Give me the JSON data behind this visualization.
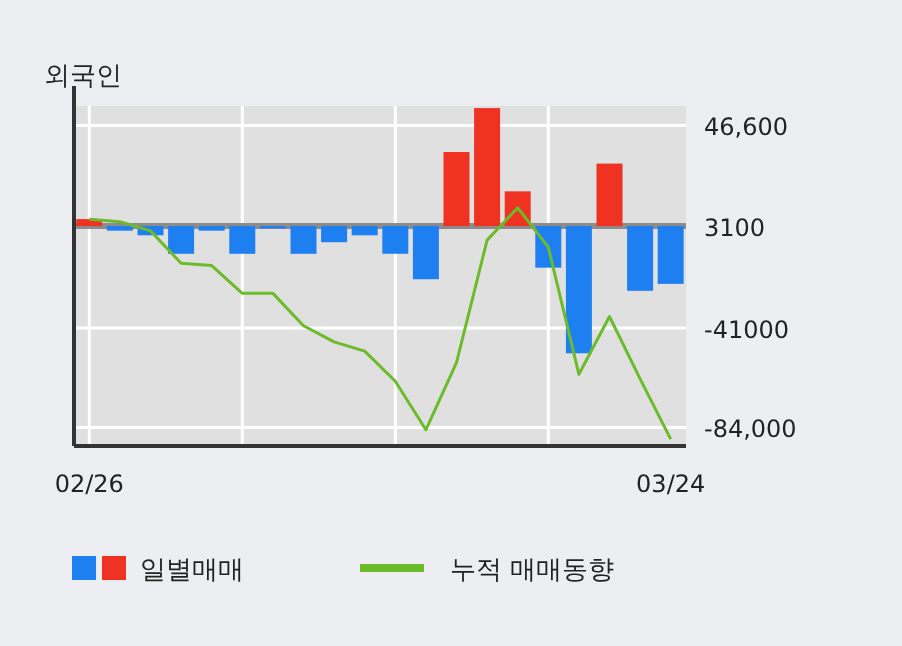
{
  "chart_data": {
    "type": "bar",
    "title": "외국인",
    "categories": [
      "02/26",
      null,
      null,
      null,
      null,
      null,
      null,
      null,
      null,
      null,
      null,
      null,
      null,
      null,
      null,
      null,
      null,
      null,
      null,
      "03/24"
    ],
    "ylim": [
      -92000,
      55000
    ],
    "yticks": [
      {
        "value": 46600,
        "label": "46,600"
      },
      3100,
      -41000,
      {
        "value": -84000,
        "label": "-84,000"
      }
    ],
    "grid": true,
    "legend": "bottom",
    "ref_lines": [
      {
        "axis": "y",
        "value": 3100,
        "color": "#8c8c8c"
      }
    ],
    "series": [
      {
        "name": "일별매매",
        "base": [
          3100,
          3100,
          3100,
          3100,
          3100,
          3100,
          3100,
          3100,
          3100,
          3100,
          3100,
          3100,
          3100,
          3100,
          3100,
          3100,
          3100,
          3100,
          3100,
          3100
        ],
        "values": [
          3000,
          -2000,
          -4000,
          -12000,
          -2000,
          -12000,
          -1000,
          -12000,
          -7000,
          -4000,
          -12000,
          -23000,
          32000,
          51000,
          15000,
          -18000,
          -55000,
          27000,
          -28000,
          -25000
        ],
        "colors": [
          "#f03222",
          "#1e80f0",
          "#1e80f0",
          "#1e80f0",
          "#1e80f0",
          "#1e80f0",
          "#1e80f0",
          "#1e80f0",
          "#1e80f0",
          "#1e80f0",
          "#1e80f0",
          "#1e80f0",
          "#f03222",
          "#f03222",
          "#f03222",
          "#1e80f0",
          "#1e80f0",
          "#f03222",
          "#1e80f0",
          "#1e80f0"
        ]
      },
      {
        "name": "누적 매매동향",
        "type": "line",
        "color": "#6cbb2a",
        "values": [
          6000,
          5000,
          1000,
          -13000,
          -14000,
          -26000,
          -26000,
          -40000,
          -47000,
          -51000,
          -64000,
          -85000,
          -56000,
          -3000,
          11000,
          -6000,
          -61000,
          -36000,
          -63000,
          -89000
        ]
      }
    ]
  }
}
